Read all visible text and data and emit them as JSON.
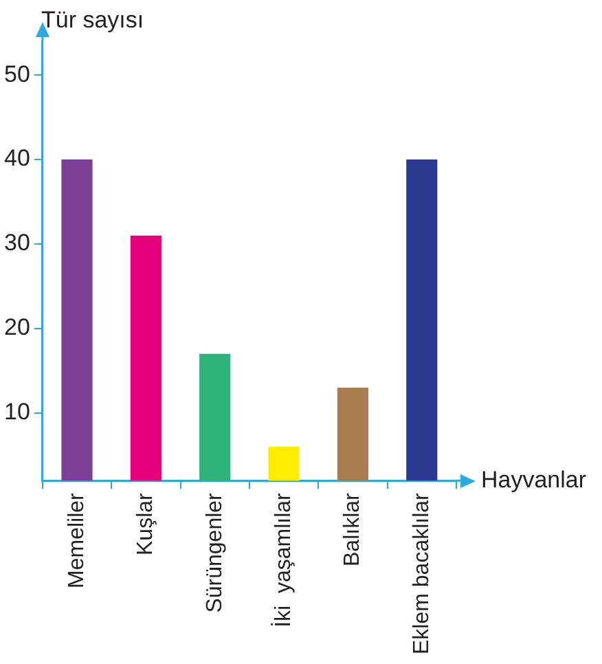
{
  "chart_data": {
    "type": "bar",
    "xlabel": "Hayvanlar",
    "ylabel": "Tür sayısı",
    "categories": [
      "Memeliler",
      "Kuşlar",
      "Sürüngenler",
      "İki  yaşamlılar",
      "Balıklar",
      "Eklem bacaklılar"
    ],
    "values": [
      40,
      31,
      17,
      6,
      13,
      40
    ],
    "colors": [
      "#7b3f98",
      "#e6007e",
      "#2db37a",
      "#ffed00",
      "#a87c4f",
      "#2b3990"
    ],
    "ylim": [
      2,
      54
    ],
    "yticks": [
      10,
      20,
      30,
      40,
      50
    ],
    "grid": false,
    "legend": false
  }
}
